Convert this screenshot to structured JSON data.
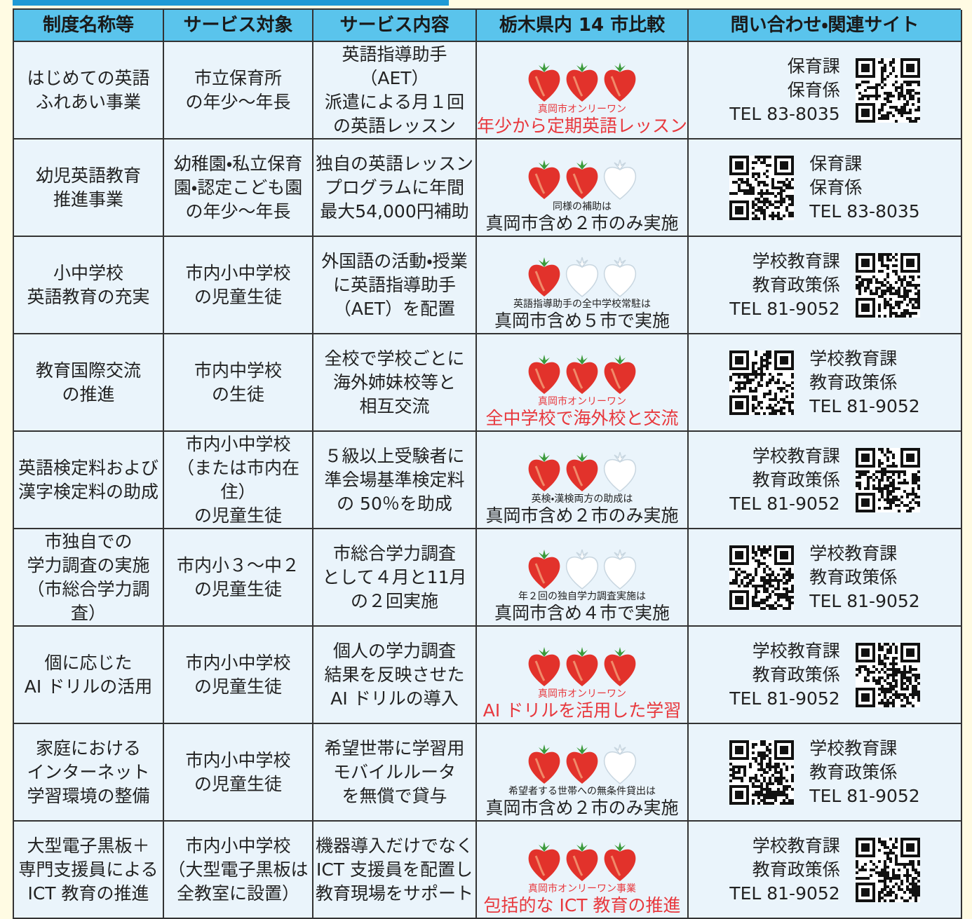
{
  "table": {
    "header": [
      "制度名称等",
      "サービス対象",
      "サービス内容",
      "栃木県内 14 市比較",
      "問い合わせ・関連サイト"
    ],
    "rows": [
      {
        "name": "はじめての英語\nふれあい事業",
        "target": "市立保育所\nの年少〜年長",
        "content": "英語指導助手（AET）\n派遣による月１回\nの英語レッスン",
        "rating": 3,
        "note": "真岡市オンリーワン",
        "result": "年少から定期英語レッスン",
        "color": "#e8383d",
        "dept": "保育課",
        "section": "保育係",
        "tel": "TEL 83-8035"
      },
      {
        "name": "幼児英語教育\n推進事業",
        "target": "幼稚園・私立保育\n園・認定こども園\nの年少〜年長",
        "content": "独自の英語レッスン\nプログラムに年間\n最大54,000円補助",
        "rating": 2,
        "note": "同様の補助は",
        "result": "真岡市含め２市のみ実施",
        "color": "#222222",
        "dept": "保育課",
        "section": "保育係",
        "tel": "TEL 83-8035"
      },
      {
        "name": "小中学校\n英語教育の充実",
        "target": "市内小中学校\nの児童生徒",
        "content": "外国語の活動・授業\nに英語指導助手\n（AET）を配置",
        "rating": 1,
        "note": "英語指導助手の全中学校常駐は",
        "result": "真岡市含め５市で実施",
        "color": "#222222",
        "dept": "学校教育課",
        "section": "教育政策係",
        "tel": "TEL 81-9052"
      },
      {
        "name": "教育国際交流\nの推進",
        "target": "市内中学校\nの生徒",
        "content": "全校で学校ごとに\n海外姉妹校等と\n相互交流",
        "rating": 3,
        "note": "真岡市オンリーワン",
        "result": "全中学校で海外校と交流",
        "color": "#e8383d",
        "dept": "学校教育課",
        "section": "教育政策係",
        "tel": "TEL 81-9052"
      },
      {
        "name": "英語検定料および\n漢字検定料の助成",
        "target": "市内小中学校\n（または市内在住）\nの児童生徒",
        "content": "５級以上受験者に\n準会場基準検定料\nの 50％を助成",
        "rating": 2,
        "note": "英検・漢検両方の助成は",
        "result": "真岡市含め２市のみ実施",
        "color": "#222222",
        "dept": "学校教育課",
        "section": "教育政策係",
        "tel": "TEL 81-9052"
      },
      {
        "name": "市独自での\n学力調査の実施\n（市総合学力調査）",
        "target": "市内小３〜中２\nの児童生徒",
        "content": "市総合学力調査\nとして４月と11月\nの２回実施",
        "rating": 1,
        "note": "年２回の独自学力調査実施は",
        "result": "真岡市含め４市で実施",
        "color": "#222222",
        "dept": "学校教育課",
        "section": "教育政策係",
        "tel": "TEL 81-9052"
      },
      {
        "name": "個に応じた\nAI ドリルの活用",
        "target": "市内小中学校\nの児童生徒",
        "content": "個人の学力調査\n結果を反映させた\nAI ドリルの導入",
        "rating": 3,
        "note": "真岡市オンリーワン",
        "result": "AI ドリルを活用した学習",
        "color": "#e8383d",
        "dept": "学校教育課",
        "section": "教育政策係",
        "tel": "TEL 81-9052"
      },
      {
        "name": "家庭における\nインターネット\n学習環境の整備",
        "target": "市内小中学校\nの児童生徒",
        "content": "希望世帯に学習用\nモバイルルータ\nを無償で貸与",
        "rating": 2,
        "note": "希望者する世帯への無条件貸出は",
        "result": "真岡市含め２市のみ実施",
        "color": "#222222",
        "dept": "学校教育課",
        "section": "教育政策係",
        "tel": "TEL 81-9052"
      },
      {
        "name": "大型電子黒板＋\n専門支援員による\nICT 教育の推進",
        "target": "市内小中学校\n（大型電子黒板は\n全教室に設置）",
        "content": "機器導入だけでなく\nICT 支援員を配置し\n教育現場をサポート",
        "rating": 3,
        "note": "真岡市オンリーワン事業",
        "result": "包括的な ICT 教育の推進",
        "color": "#e8383d",
        "dept": "学校教育課",
        "section": "教育政策係",
        "tel": "TEL 81-9052"
      }
    ]
  }
}
